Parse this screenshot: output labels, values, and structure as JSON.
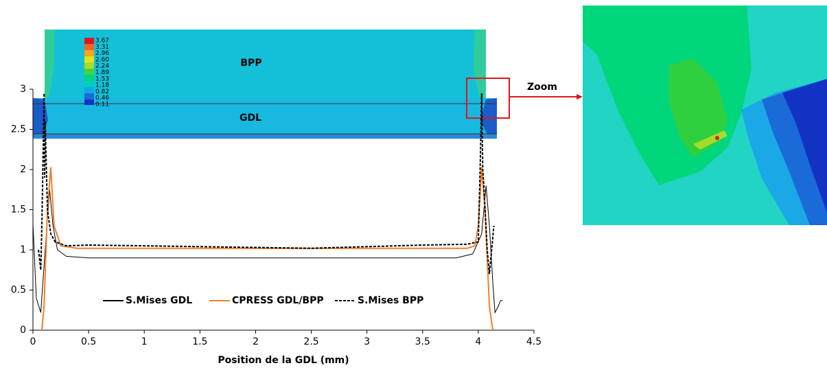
{
  "chart_data": {
    "type": "line",
    "x_label": "Position de la GDL (mm)",
    "xlim": [
      0,
      4.5
    ],
    "xticks": [
      0,
      0.5,
      1,
      1.5,
      2,
      2.5,
      3,
      3.5,
      4,
      4.5
    ],
    "ylim": [
      0,
      3
    ],
    "yticks": [
      0,
      0.5,
      1,
      1.5,
      2,
      2.5,
      3
    ],
    "series": [
      {
        "name": "S.Mises GDL",
        "color": "#000000",
        "dash": false,
        "x": [
          0,
          0.03,
          0.07,
          0.1,
          0.12,
          0.15,
          0.18,
          0.22,
          0.3,
          0.5,
          1,
          2,
          3,
          3.8,
          3.95,
          4.03,
          4.07,
          4.1,
          4.13,
          4.15,
          4.18,
          4.2,
          4.22
        ],
        "values": [
          1.33,
          0.4,
          0.22,
          0.8,
          1.2,
          1.75,
          1.3,
          1.0,
          0.92,
          0.9,
          0.9,
          0.9,
          0.9,
          0.9,
          0.95,
          1.2,
          1.8,
          1.3,
          0.6,
          0.22,
          0.3,
          0.37,
          0.37
        ]
      },
      {
        "name": "CPRESS GDL/BPP",
        "color": "#f07f2a",
        "dash": false,
        "x": [
          0.08,
          0.1,
          0.13,
          0.16,
          0.19,
          0.25,
          0.4,
          1,
          2,
          3,
          3.9,
          3.97,
          4.0,
          4.03,
          4.06,
          4.1,
          4.13
        ],
        "values": [
          0,
          0.3,
          1.5,
          2.03,
          1.3,
          1.05,
          1.02,
          1.02,
          1.02,
          1.02,
          1.02,
          1.05,
          1.3,
          2.03,
          1.5,
          0.3,
          0
        ]
      },
      {
        "name": "S.Mises BPP",
        "color": "#000000",
        "dash": true,
        "x": [
          0.05,
          0.07,
          0.08,
          0.09,
          0.1,
          0.105,
          0.11,
          0.13,
          0.16,
          0.2,
          0.3,
          0.5,
          1,
          2,
          2.5,
          3,
          3.5,
          3.9,
          4.0,
          4.02,
          4.03,
          4.04,
          4.05,
          4.08,
          4.1,
          4.14
        ],
        "values": [
          1.0,
          0.75,
          1.3,
          2.1,
          2.95,
          1.9,
          2.6,
          1.5,
          1.2,
          1.1,
          1.05,
          1.06,
          1.05,
          1.03,
          1.02,
          1.04,
          1.06,
          1.07,
          1.1,
          2.2,
          2.95,
          2.0,
          1.8,
          1.0,
          0.7,
          1.3
        ]
      }
    ],
    "legend": "lower-center",
    "annotations": {
      "bpp": "BPP",
      "gdl": "GDL",
      "zoom": "Zoom"
    },
    "colorbar": {
      "labels": [
        "3.67",
        "3.31",
        "2.96",
        "2.60",
        "2.24",
        "1.89",
        "1.53",
        "1.18",
        "0.82",
        "0.46",
        "0.11"
      ]
    }
  }
}
